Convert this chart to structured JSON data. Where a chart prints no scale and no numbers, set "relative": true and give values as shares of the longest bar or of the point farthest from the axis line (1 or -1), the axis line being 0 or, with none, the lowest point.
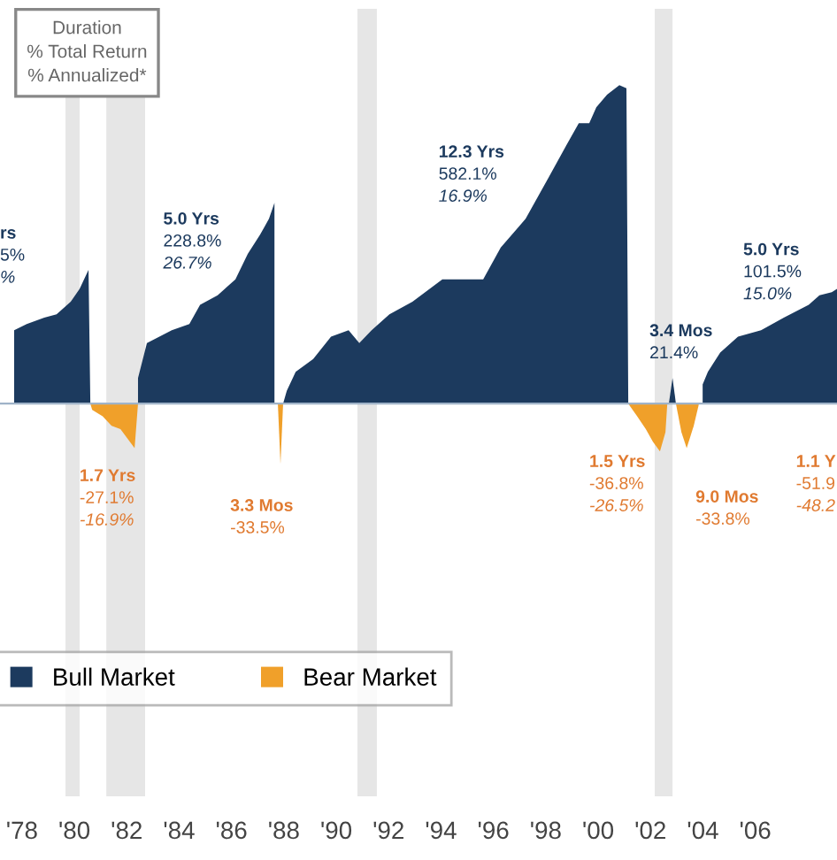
{
  "chart_data": {
    "type": "area",
    "relative": true,
    "xlim": [
      1977.16,
      2009.12
    ],
    "xticks": [
      {
        "value": 1978,
        "label": "'78"
      },
      {
        "value": 1980,
        "label": "'80"
      },
      {
        "value": 1982,
        "label": "'82"
      },
      {
        "value": 1984,
        "label": "'84"
      },
      {
        "value": 1986,
        "label": "'86"
      },
      {
        "value": 1988,
        "label": "'88"
      },
      {
        "value": 1990,
        "label": "'90"
      },
      {
        "value": 1992,
        "label": "'92"
      },
      {
        "value": 1994,
        "label": "'94"
      },
      {
        "value": 1996,
        "label": "'96"
      },
      {
        "value": 1998,
        "label": "'98"
      },
      {
        "value": 2000,
        "label": "'00"
      },
      {
        "value": 2002,
        "label": "'02"
      },
      {
        "value": 2004,
        "label": "'04"
      },
      {
        "value": 2006,
        "label": "'06"
      }
    ],
    "series": [
      {
        "name": "Bull Market",
        "color": "#1c3a5e",
        "x": [
          1977.7,
          1978.18,
          1978.85,
          1979.32,
          1979.86,
          1980.2,
          1980.54,
          1980.61,
          1981.5,
          1982.43,
          1982.77,
          1983.72,
          1984.39,
          1984.8,
          1985.47,
          1986.15,
          1986.62,
          1987.09,
          1987.43,
          1987.64,
          1987.87,
          1987.97,
          1988.11,
          1988.45,
          1989.12,
          1989.8,
          1990.47,
          1990.88,
          1991.35,
          1992.03,
          1992.91,
          1994.05,
          1995.61,
          1996.28,
          1997.23,
          1998.11,
          1998.78,
          1999.26,
          1999.66,
          1999.93,
          2000.34,
          2000.81,
          2001.08,
          2001.15,
          2001.5,
          2002.7,
          2002.84,
          2002.97,
          2003.4,
          2003.99,
          2004.19,
          2004.66,
          2005.34,
          2006.22,
          2007.09,
          2008.04,
          2008.45,
          2008.92,
          2009.12
        ],
        "values": [
          0.23,
          0.25,
          0.27,
          0.28,
          0.32,
          0.36,
          0.42,
          0,
          null,
          0.08,
          0.19,
          0.23,
          0.25,
          0.31,
          0.34,
          0.39,
          0.47,
          0.53,
          0.58,
          0.63,
          null,
          0,
          0.04,
          0.1,
          0.14,
          0.21,
          0.23,
          0.19,
          0.23,
          0.28,
          0.32,
          0.39,
          0.39,
          0.49,
          0.58,
          0.71,
          0.81,
          0.88,
          0.88,
          0.93,
          0.97,
          1.0,
          0.99,
          0,
          null,
          0,
          0.08,
          0,
          null,
          0.06,
          0.1,
          0.16,
          0.21,
          0.23,
          0.27,
          0.31,
          0.34,
          0.35,
          0.36
        ]
      },
      {
        "name": "Bear Market",
        "color": "#f0a02a",
        "x": [
          1980.61,
          1980.68,
          1981.08,
          1981.42,
          1981.76,
          1982.03,
          1982.3,
          1982.43,
          1985.0,
          1987.77,
          1987.87,
          1987.97,
          1995.0,
          2001.15,
          2001.49,
          2001.82,
          2002.09,
          2002.36,
          2002.57,
          2002.64,
          2002.8,
          2002.97,
          2003.18,
          2003.38,
          2003.65,
          2003.85
        ],
        "values": [
          0,
          -0.02,
          -0.04,
          -0.07,
          -0.08,
          -0.11,
          -0.14,
          0,
          null,
          0,
          -0.19,
          0,
          null,
          0,
          -0.04,
          -0.08,
          -0.12,
          -0.15,
          -0.09,
          0,
          null,
          0,
          -0.09,
          -0.14,
          -0.07,
          0
        ]
      }
    ],
    "bands": [
      {
        "axis": "x",
        "from": 1979.66,
        "to": 1980.2,
        "color": "#e6e6e6"
      },
      {
        "axis": "x",
        "from": 1981.22,
        "to": 1982.7,
        "color": "#e6e6e6"
      },
      {
        "axis": "x",
        "from": 1990.81,
        "to": 1991.55,
        "color": "#e6e6e6"
      },
      {
        "axis": "x",
        "from": 2002.16,
        "to": 2002.84,
        "color": "#e6e6e6"
      }
    ],
    "ref_lines": [
      {
        "axis": "y",
        "value": 0,
        "color": "#9fb3c8"
      }
    ],
    "legend": "bottom left",
    "annotations": [
      "Duration\n% Total Return\n% Annualized*",
      "rs\n5%\n%",
      "5.0 Yrs\n228.8%\n26.7%",
      "12.3 Yrs\n582.1%\n16.9%",
      "3.4 Mos\n21.4%",
      "5.0 Yrs\n101.5%\n15.0%",
      "1.7 Yrs\n-27.1%\n-16.9%",
      "3.3 Mos\n-33.5%",
      "1.5 Yrs\n-36.8%\n-26.5%",
      "9.0 Mos\n-33.8%",
      "1.1 Y\n-51.9\n-48.2"
    ]
  }
}
